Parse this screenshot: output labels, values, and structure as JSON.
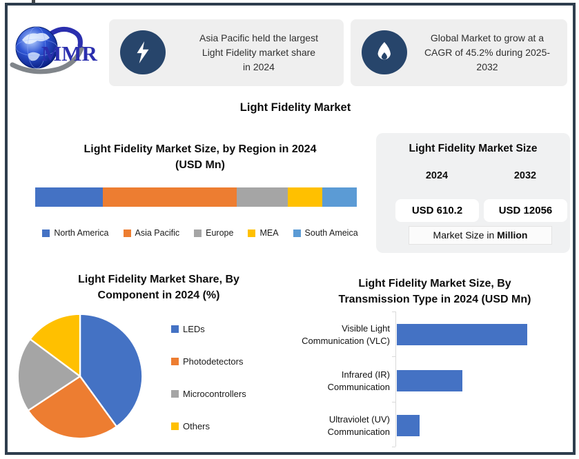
{
  "logo": {
    "text": "MMR"
  },
  "callouts": [
    {
      "icon": "lightning-bolt-icon",
      "lines": [
        "Asia Pacific held the largest",
        "Light Fidelity market share",
        "in 2024"
      ]
    },
    {
      "icon": "flame-icon",
      "lines": [
        "Global Market to grow at a",
        "CAGR of 45.2% during 2025-",
        "2032"
      ]
    }
  ],
  "main_title": "Light Fidelity Market",
  "size_panel": {
    "title": "Light Fidelity Market Size",
    "years": [
      "2024",
      "2032"
    ],
    "values": [
      "USD 610.2",
      "USD 12056"
    ],
    "footer_prefix": "Market Size in ",
    "footer_bold": "Million"
  },
  "theme": {
    "frame_border": "#2e3d4d",
    "callout_bg": "#efefef",
    "badge_bg": "#27456b",
    "card_bg": "#f0f1f2",
    "value_color": "#2879a5"
  },
  "chart_data": [
    {
      "type": "bar",
      "subtype": "stacked_horizontal_single_bar",
      "title": "Light Fidelity Market Size, by Region in 2024 (USD Mn)",
      "title_lines": [
        "Light Fidelity Market Size, by Region in 2024",
        "(USD Mn)"
      ],
      "categories": [
        "North America",
        "Asia Pacific",
        "Europe",
        "MEA",
        "South Ameica"
      ],
      "values_pct_est": [
        21.1,
        41.6,
        15.8,
        10.75,
        10.75
      ],
      "colors": [
        "#4472C4",
        "#ED7D31",
        "#A5A5A5",
        "#FFC000",
        "#5B9BD5"
      ],
      "legend_position": "bottom",
      "axis_labels_shown": false
    },
    {
      "type": "pie",
      "title": "Light Fidelity Market Share, By Component in 2024 (%)",
      "title_lines": [
        "Light Fidelity Market Share, By",
        "Component in 2024 (%)"
      ],
      "labels": [
        "LEDs",
        "Photodetectors",
        "Microcontrollers",
        "Others"
      ],
      "values_pct_est": [
        40,
        25.7,
        19.5,
        14.8
      ],
      "colors": [
        "#4472C4",
        "#ED7D31",
        "#A5A5A5",
        "#FFC000"
      ],
      "start_angle_deg": 0,
      "legend_position": "right"
    },
    {
      "type": "bar",
      "orientation": "horizontal",
      "title": "Light Fidelity Market Size, By Transmission Type in 2024 (USD Mn)",
      "title_lines": [
        "Light Fidelity Market Size, By",
        "Transmission Type in 2024 (USD Mn)"
      ],
      "categories": [
        "Visible Light Communication (VLC)",
        "Infrared (IR) Communication",
        "Ultraviolet (UV) Communication"
      ],
      "category_lines": [
        [
          "Visible Light",
          "Communication (VLC)"
        ],
        [
          "Infrared (IR)",
          "Communication"
        ],
        [
          "Ultraviolet (UV)",
          "Communication"
        ]
      ],
      "values_relative_est": [
        100,
        50.3,
        17.5
      ],
      "bar_color": "#4472C4",
      "axis_labels_shown": false
    }
  ]
}
